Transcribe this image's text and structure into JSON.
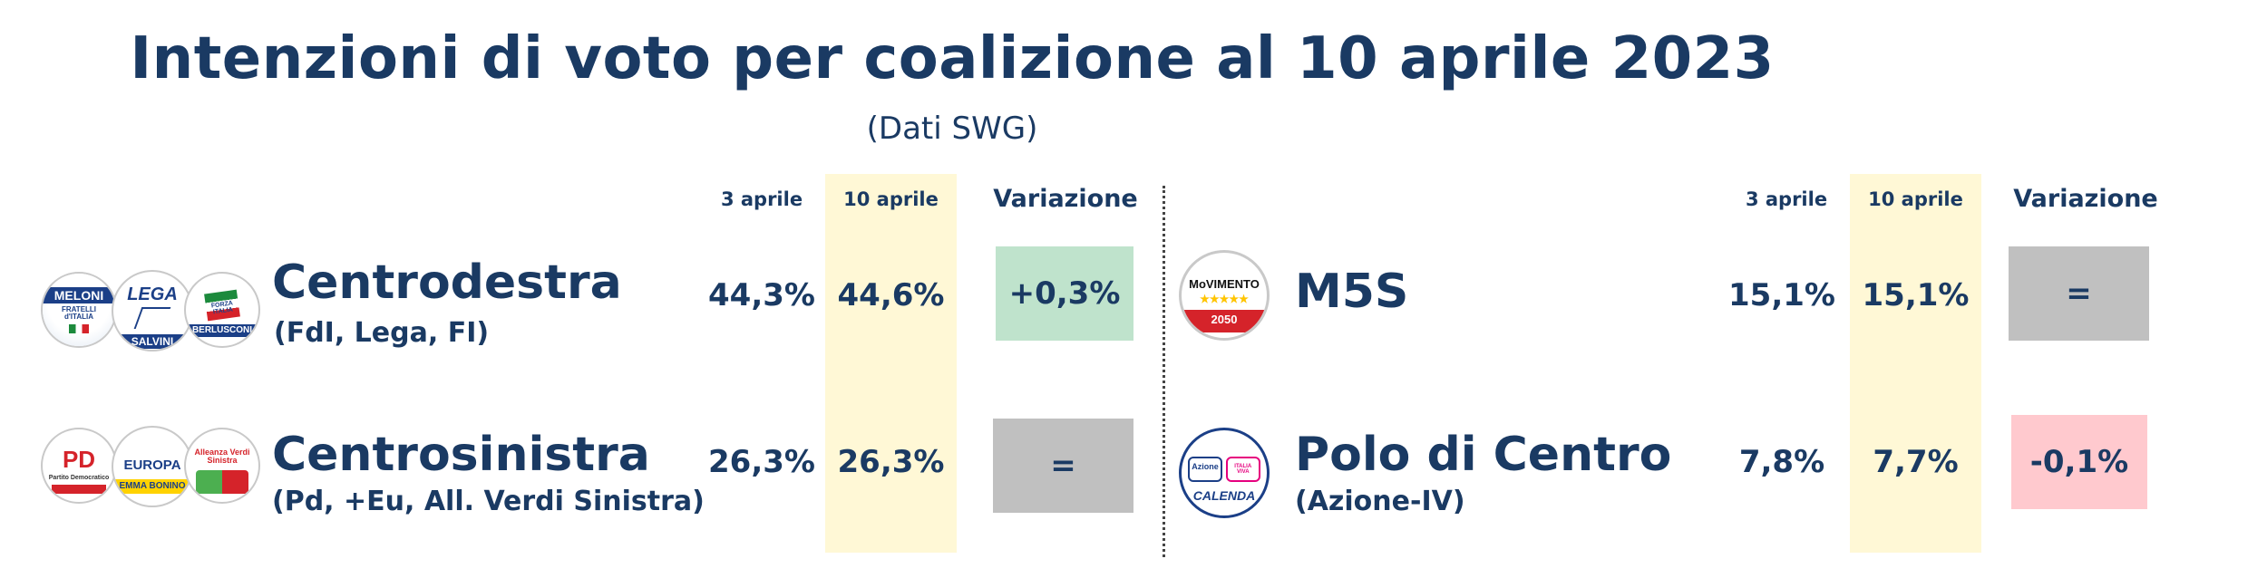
{
  "title": "Intenzioni di voto per coalizione al 10 aprile 2023",
  "subtitle": "(Dati SWG)",
  "headers": {
    "date1": "3 aprile",
    "date2": "10 aprile",
    "change": "Variazione"
  },
  "colors": {
    "positive": "#bfe3cc",
    "neutral": "#c0c0c0",
    "negative": "#ffc9ce",
    "highlight": "#fff8d6",
    "text": "#1a3a63"
  },
  "logos": {
    "fdi": "FRATELLI d'ITALIA",
    "fdi_name": "MELONI",
    "lega": "LEGA",
    "lega_name": "SALVINI",
    "fi": "FORZA ITALIA",
    "fi_name": "BERLUSCONI",
    "pd": "PD",
    "pd_text": "Partito Democratico",
    "eu": "EUROPA",
    "eu_name": "EMMA BONINO",
    "avs": "Alleanza Verdi Sinistra",
    "m5s": "MoVIMENTO",
    "m5s_year": "2050",
    "azione": "Azione",
    "iv": "ITALIA VIVA",
    "calenda": "CALENDA"
  },
  "chart_data": {
    "type": "table",
    "title": "Intenzioni di voto per coalizione al 10 aprile 2023",
    "subtitle": "(Dati SWG)",
    "columns": [
      "3 aprile",
      "10 aprile",
      "Variazione"
    ],
    "rows": [
      {
        "name": "Centrodestra",
        "parties": "(FdI, Lega, FI)",
        "apr3": "44,3%",
        "apr10": "44,6%",
        "change": "+0,3%",
        "trend": "positive"
      },
      {
        "name": "Centrosinistra",
        "parties": "(Pd, +Eu, All. Verdi Sinistra)",
        "apr3": "26,3%",
        "apr10": "26,3%",
        "change": "=",
        "trend": "neutral"
      },
      {
        "name": "M5S",
        "parties": "",
        "apr3": "15,1%",
        "apr10": "15,1%",
        "change": "=",
        "trend": "neutral"
      },
      {
        "name": "Polo di Centro",
        "parties": "(Azione-IV)",
        "apr3": "7,8%",
        "apr10": "7,7%",
        "change": "-0,1%",
        "trend": "negative"
      }
    ]
  }
}
